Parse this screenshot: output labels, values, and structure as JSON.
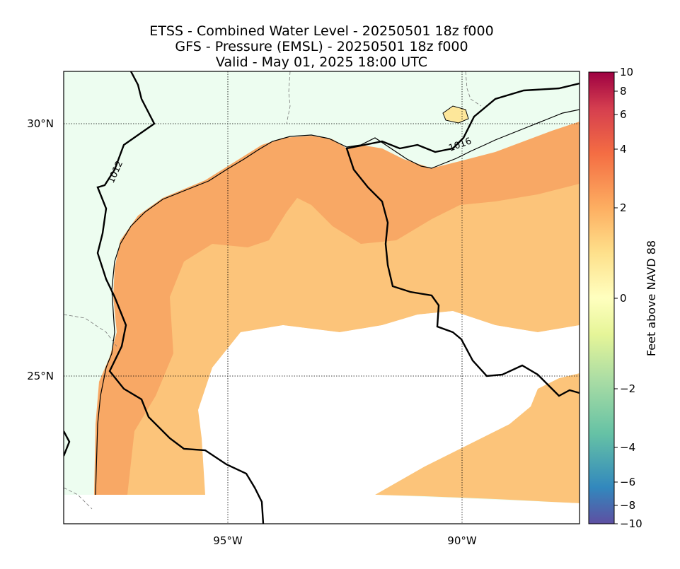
{
  "title": {
    "line1": "ETSS - Combined Water Level - 20250501 18z f000",
    "line2": "GFS - Pressure (EMSL) - 20250501 18z f000",
    "line3": "Valid - May 01, 2025 18:00 UTC"
  },
  "axes": {
    "lat_labels": [
      "30°N",
      "25°N"
    ],
    "lon_labels": [
      "95°W",
      "90°W"
    ]
  },
  "isobars": [
    {
      "label": "1012"
    },
    {
      "label": "1016"
    }
  ],
  "colorbar": {
    "label": "Feet above NAVD 88",
    "ticks": [
      "10",
      "8",
      "6",
      "4",
      "2",
      "0",
      "−2",
      "−4",
      "−6",
      "−8",
      "−10"
    ],
    "colors": [
      "#9e0142",
      "#d53e4f",
      "#f46d43",
      "#fdae61",
      "#fee08b",
      "#ffffbf",
      "#e6f598",
      "#abdda4",
      "#66c2a5",
      "#3288bd",
      "#5e4fa2"
    ]
  },
  "map_colors": {
    "land": "#edfdf0",
    "water_high": "#f8a865",
    "water_mid": "#fcc47a",
    "no_data": "#ffffff"
  }
}
